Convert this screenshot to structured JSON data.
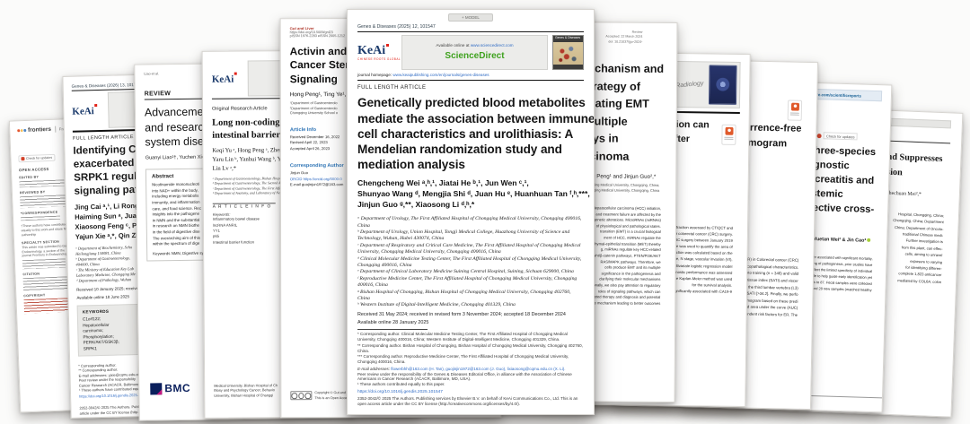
{
  "center": {
    "model_tag": "+ MODEL",
    "issue": "Genes & Diseases (2025) 12, 101547",
    "keai": {
      "name": "KeAi",
      "tagline": "CHINESE ROOTS GLOBAL IMPACT"
    },
    "available_prefix": "Available online at",
    "available_url": "www.sciencedirect.com",
    "sciencedirect": "ScienceDirect",
    "cover": {
      "title": "Genes & Diseases"
    },
    "homepage_label": "journal homepage:",
    "homepage_url": "www.keaipublishing.com/en/journals/genes-diseases",
    "section": "FULL LENGTH ARTICLE",
    "title_lines": [
      "Genetically predicted blood metabolites",
      "mediate the association between immune",
      "cell characteristics and urolithiasis: A",
      "Mendelian randomization study and",
      "mediation analysis"
    ],
    "author_lines": [
      "Chengcheng Wei ᵃ,ʰ,¹, Jiatai He ᵇ,¹, Jun Wen ᶜ,¹,",
      "Shunyao Wang ᵈ, Mengjia Shi ᵈ, Juan Hu ᵉ, Huanhuan Tan ᶠ,ʰ,***,",
      "Jinjun Guo ᵍ,**, Xiaosong Li ᵈ,ʰ,*"
    ],
    "affiliations": [
      "ᵃ Department of Urology, The First Affiliated Hospital of Chongqing Medical University, Chongqing 400016, China",
      "ᵇ Department of Urology, Union Hospital, Tongji Medical College, Huazhong University of Science and Technology, Wuhan, Hubei 430074, China",
      "ᶜ Department of Respiratory and Critical Care Medicine, The First Affiliated Hospital of Chongqing Medical University, Chongqing Medical University, Chongqing 400016, China",
      "ᵈ Clinical Molecular Medicine Testing Center, The First Affiliated Hospital of Chongqing Medical University, Chongqing 400016, China",
      "ᵉ Department of Clinical Laboratory Medicine Suining Central Hospital, Suining, Sichuan 629000, China",
      "ᶠ Reproductive Medicine Center, The First Affiliated Hospital of Chongqing Medical University, Chongqing 400016, China",
      "ᵍ Bishan Hospital of Chongqing, Bishan Hospital of Chongqing Medical University, Chongqing 402760, China",
      "ʰ Western Institute of Digital-Intelligent Medicine, Chongqing 401329, China"
    ],
    "received": "Received 31 May 2024; received in revised form 3 November 2024; accepted 18 December 2024",
    "available_online": "Available online 28 January 2025",
    "footnotes": [
      "* Corresponding author. Clinical Molecular Medicine Testing Center, The First Affiliated Hospital of Chongqing Medical University, Chongqing 400016, China; Western Institute of Digital-Intelligent Medicine, Chongqing 401329, China.",
      "** Corresponding author. Bishan Hospital of Chongqing, Bishan Hospital of Chongqing Medical University, Chongqing 402760, China.",
      "*** Corresponding author. Reproductive Medicine Center, The First Affiliated Hospital of Chongqing Medical University, Chongqing 400016, China."
    ],
    "email_label": "E-mail addresses:",
    "emails": "flowerbhh@163.com (H. Tan), guojinjin1972@163.com (J. Guo), lixiaosong@cqmu.edu.cn (X. Li).",
    "peer_review": "Peer review under the responsibility of the Genes & Diseases Editorial Office, in alliance with the Association of Chinese Americans in Cancer Research (ACACR, Baltimore, MD, USA).",
    "equal_note": "¹ These authors contributed equally to this paper.",
    "doi": "https://doi.org/10.1016/j.gendis.2025.101547",
    "copyright": "2352-3042/© 2025 The Authors. Publishing services by Elsevier B.V. on behalf of KeAi Communications Co., Ltd. This is an open access article under the CC BY license (http://creativecommons.org/licenses/by/4.0/)."
  },
  "frontiers": {
    "brand": "frontiers",
    "journal_prefix": "Frontiers in",
    "journal_name": "Endocrinology",
    "badge": "Check for updates",
    "open_access": "OPEN ACCESS",
    "edited_label": "EDITED BY",
    "reviewed_label": "REVIEWED BY",
    "corr_label": "*CORRESPONDENCE",
    "equal_note": "†These authors have contributed equally to this work and share first authorship",
    "specialty_label": "SPECIALTY SECTION",
    "specialty_text": "This article was submitted to Gut Endocrinology, a section of the journal Frontiers in Endocrinology",
    "citation_label": "CITATION",
    "copyright_label": "COPYRIGHT",
    "title_fragments": [
      "Ad",
      "of",
      "dis"
    ]
  },
  "c1orf": {
    "issue": "Genes & Diseases (2026) 13, 1017",
    "keai": "KeAi",
    "section": "FULL LENGTH ARTICLE",
    "title_lines": [
      "Identifying C1orf122 as a key",
      "exacerbated biological beha",
      "SRPK1 regulates phosphoryl",
      "signaling pathway activation"
    ],
    "author_lines": [
      "Jing Cai ᵃ,¹, Li Rong ᵇ,¹, Xu",
      "Haiming Sun ᵃ, Juan Chen ᶜ",
      "Xiaosong Feng ᶜ, Peiyi Liu ᵈ",
      "Yajun Xie ᵃ,*, Qin Zhou ᵈ,*"
    ],
    "affil_lines": [
      "ᵃ Department of Biochemistry, Scho",
      "Heilongjiang 150081, China",
      "ᵇ Department of Gastroenterology,",
      "404000, China",
      "ᶜ The Ministry of Education Key Lab",
      "Laboratory Medicine, Chongqing Me",
      "ᵈ Department of Pathology, Wuhan"
    ],
    "received": "Received 10 January 2025; received in",
    "available": "Available online 18 June 2025",
    "kw_label": "KEYWORDS",
    "keywords": [
      "C1orf122;",
      "Hepatocellular",
      "carcinoma;",
      "Phosphorylation;",
      "PERK/AKT/GSK3β;",
      "SRPK1"
    ],
    "foot_lines": [
      "* Corresponding author.",
      "** Corresponding author.",
      "E-mail addresses: yjxie@cqmu.edu.cn",
      "Peer review under the responsibility",
      "Cancer Research (ACACR, Baltimore, MD",
      "¹ These authors have contributed equa"
    ],
    "doi": "https://doi.org/10.1016/j.gendis.2025.1",
    "copy_lines": [
      "2352-3042/© 2025 The Authors. Publish",
      "article under the CC BY license (http://"
    ]
  },
  "nmn": {
    "header_left": "Liao et al.",
    "header_right": "Journal of Translational Medicine",
    "header_doi": "https://doi.org/10.1186/s12967-",
    "review_label": "REVIEW",
    "title_lines": [
      "Advancements in NMN bioth",
      "and research progress of dig",
      "system diseases"
    ],
    "authors": "Guanyi Liao¹†, Yuchen Xie²,",
    "abstract_label": "Abstract",
    "abstract_lines": [
      "Nicotinamide mononucleoti",
      "into NAD+ within the body,",
      "including energy metabolis",
      "immunity, and inflammation",
      "care, and food science. Rec",
      "insights into the pathogene",
      "in NMN and the substantial",
      "in research on NMN biothe",
      "in the field of digestive dise",
      "The overarching aim of this",
      "within the spectrum of dige"
    ],
    "keywords": "Keywords NMN, Digestive sy",
    "bmc": "BMC"
  },
  "lncrna": {
    "keai": "KeAi",
    "type_label": "Original Research Article",
    "title_lines": [
      "Long non-coding RNA ANRIL r",
      "intestinal barrier function thr"
    ],
    "author_lines": [
      "Keqi Yu ᵃ, Hong Peng ᵃ, Zhenh",
      "Yaru Lin ᵇ, Yanhui Wang ᵇ, Yax",
      "Lin Lv ᵃ,*"
    ],
    "affil_lines": [
      "ᵃ Department of Gastroenterology, Bishan Hospital of",
      "ᵇ Department of Gastroenterology, The Second Affilia",
      "ᶜ Department of Gastroenterology, The First Affiliate",
      "ᵈ Department of Anatomy, and Laboratory of Neurosc"
    ],
    "info_label": "A R T I C L E   I N F O",
    "kw_label": "Keywords:",
    "keywords": [
      "Inflammatory bowel disease",
      "lncRNA ANRIL",
      "YY1",
      "p65",
      "Intestinal barrier function"
    ],
    "bottom_lines": [
      "Medical University, Bishan Hospital of Ch",
      "Biosy and Psychology Cancer, Behavio",
      "University, Bishan Hospital of Changqi"
    ]
  },
  "gutliver": {
    "masthead": "Gut and Liver",
    "doi": "https://doi.org/10.5009/gnl23",
    "issn": "pISSN 1976-2283  eISSN 2005-1212",
    "title_lines": [
      "Activin and Hepatocellula",
      "Cancer Stemness throug",
      "Signaling"
    ],
    "authors": "Hong Peng¹, Ting Ye¹, Li",
    "affil_lines": [
      "¹Department of Gastroenterolo",
      "²Department of Gastroenterolo",
      "Chongqing University School o"
    ],
    "info_label": "Article Info",
    "received": "Received December 16, 2022",
    "revised": "Revised April 22, 2023",
    "accepted": "Accepted April 26, 2023",
    "corr_label": "Corresponding Author",
    "corr_name": "Jinjun Guo",
    "orcid": "ORCID https://orcid.org/0000-0",
    "email": "E-mail guojinjun1972@163.com",
    "bottom_lines": [
      "Copyright © Gut and Liver.",
      "This is an Open Access article"
    ]
  },
  "emt": {
    "header_lines": [
      "Review",
      "Accepted: 22 March 2024",
      "doi: 10.21037/jgo-2024-"
    ],
    "title_lines": [
      "Research progress on the mechanism and",
      "potential therapeutic strategy of",
      "noncoding miRNAs regulating EMT",
      "signaling through multiple",
      "transduction pathways in",
      "hepatocellular carcinoma"
    ],
    "author_line": "Hong Peng¹ and Jinjun Guo²,*",
    "affil_lines": [
      "Bishan Hospital, Chongqing Medical University, Chongqing, China;",
      "Gastroenterology, Chongqing Medical University, Chongqing, China"
    ],
    "abstract_lines": [
      "Hepatocellular carcinoma (HCC) initiation,",
      "progression and treatment failure are affected by the",
      "genetic alterations. MicroRNAs (miRNAs)",
      "of physiological and pathological states.",
      "transition (EMT) is a crucial biological",
      "ment of HCC, miRNAs regulate the",
      "chymal-epithelial transition (MET) thereby",
      "g, miRNAs regulate key HCC-related",
      "Wnt/β-catenin pathways, PTEN/PI3K/AKT",
      "RAS/MAPK pathways. Therefore, we",
      "cells produce EMT and its multiple",
      "significance in the pathogenesis and",
      "clarifying their molecular mechanisms",
      "additionally, we also pay attention to regulatory",
      "roles of signaling pathways, which can",
      "targeted therapy and diagnosis and potential",
      "of the mechanism leading to better outcomes"
    ]
  },
  "bodycomp": {
    "banner_script": "Radiology",
    "title_lines": [
      "Preoperative CT-based body composition can",
      "predict early recurrence and prognosis after",
      "radical colorectal cancer surgery"
    ],
    "body_lines": [
      "the value of liver fat fraction assessed by CT/QCT and",
      "early recurrence (ER) after colorectal cancer (CRC) surgery.",
      "who underwent radical CRC surgery between January 2019",
      "automatic software was used to quantify the area of",
      "muscle area, and liver fat fraction was calculated based on the",
      "including tumor grade, T stage, N stage, vascular invasion (VI),",
      "CEA, and CA19-9. A multivariate logistic regression model",
      "ER after surgery. The diagnostic performance was assessed",
      "by cross-validation. The Kaplan-Meier method was used",
      "for the survival analysis.",
      "CRC surgery was significantly associated with CA19-9"
    ]
  },
  "nomogram": {
    "title_lines": [
      "Prediction of early recurrence-free",
      "survival using a CT-based nomogram"
    ],
    "body_lines": [
      "recurrence (ER) in Colorectal cancer (CRC)",
      "clinicopathological characteristics.",
      "divided into training (n = 346) and valid",
      "adipose tissue index (SATI) and viscer",
      "level of the third lumbar vertebra (L3)",
      "and L3-SATI [>34.2]. Finally, we perfo",
      "a nomogram based on these predi",
      "curves, and area under the curve (AUC)",
      "independent risk factors for ER. The"
    ]
  },
  "scireports": {
    "band": "www.nature.com/scientificreports",
    "badge": "Check for updates",
    "title_lines": [
      "A novel gut microbiota three-species",
      "model improves the diagnostic",
      "accuracy of acute pancreatitis and",
      "reflects the degree of systemic",
      "inflammation: a prospective cross-",
      "sectional study"
    ],
    "authors": "Yue Zhang¹, Yuetan Wei² & Jin Cao³",
    "body_lines": [
      "disorder associated with significant mortality,",
      "understanding of pathogenesis, prior studies have",
      "changes reflect the limited specificity of individual",
      "biomarkers able to help guide early identification yet",
      "studies to 87. Fecal samples were collected",
      "patients and 28 new samples (matched healthy"
    ],
    "footer": "nature portfolio"
  },
  "suppresses": {
    "title_lines": [
      "Polyphyllin VII Induces Autophagy and Suppresses",
      "Colorectal Cancer Migration and Invasion"
    ],
    "author": "Xin Zhang¹ and Shechuan Mei²,*",
    "body_lines": [
      "Hospital, Chongqing, China;",
      "Chongqing, China; Department",
      "China; Department of Oncolo-",
      "traditional Chinese medi-",
      "Further investigation is",
      "from this plant, can effec-",
      "cells, aiming to unravel",
      "exposure to varying",
      "for identifying differen-",
      "complete 1,823 anticancer",
      "mediated by COL6A; colon"
    ]
  }
}
